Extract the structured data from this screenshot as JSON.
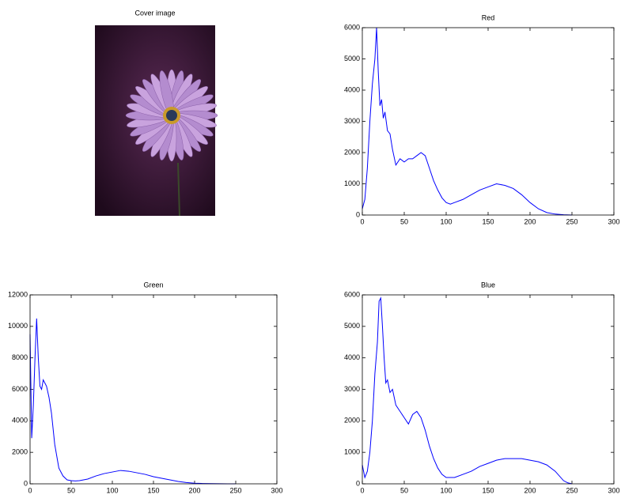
{
  "chart_data": [
    {
      "type": "image",
      "title": "Cover image"
    },
    {
      "type": "line",
      "title": "Red",
      "series": [
        {
          "color": "#0000ff",
          "x": [
            0,
            3,
            6,
            9,
            12,
            15,
            17,
            19,
            21,
            23,
            25,
            27,
            30,
            33,
            36,
            40,
            45,
            50,
            55,
            60,
            65,
            70,
            75,
            80,
            85,
            90,
            95,
            100,
            105,
            110,
            120,
            130,
            140,
            150,
            160,
            170,
            180,
            190,
            200,
            210,
            220,
            230,
            240,
            250
          ],
          "values": [
            200,
            500,
            1500,
            3000,
            4200,
            5000,
            6000,
            4600,
            3500,
            3700,
            3100,
            3300,
            2700,
            2600,
            2100,
            1600,
            1800,
            1700,
            1800,
            1800,
            1900,
            2000,
            1900,
            1500,
            1100,
            800,
            550,
            400,
            350,
            400,
            500,
            650,
            800,
            900,
            1000,
            950,
            850,
            650,
            400,
            200,
            80,
            30,
            10,
            0
          ]
        }
      ],
      "xlim": [
        0,
        300
      ],
      "xticks": [
        0,
        50,
        100,
        150,
        200,
        250,
        300
      ],
      "ylim": [
        0,
        6000
      ],
      "yticks": [
        0,
        1000,
        2000,
        3000,
        4000,
        5000,
        6000
      ]
    },
    {
      "type": "line",
      "title": "Green",
      "series": [
        {
          "color": "#0000ff",
          "x": [
            0,
            2,
            4,
            6,
            8,
            10,
            12,
            14,
            16,
            18,
            20,
            23,
            26,
            30,
            35,
            40,
            45,
            50,
            55,
            60,
            70,
            80,
            90,
            100,
            110,
            120,
            130,
            140,
            150,
            160,
            170,
            180,
            190,
            200,
            210,
            220,
            230,
            240,
            250
          ],
          "values": [
            9500,
            2900,
            5000,
            8000,
            10500,
            8000,
            6200,
            6000,
            6600,
            6400,
            6200,
            5500,
            4500,
            2500,
            1000,
            500,
            250,
            200,
            180,
            200,
            300,
            500,
            650,
            750,
            850,
            800,
            700,
            600,
            450,
            350,
            250,
            150,
            80,
            40,
            20,
            10,
            5,
            0,
            0
          ]
        }
      ],
      "xlim": [
        0,
        300
      ],
      "xticks": [
        0,
        50,
        100,
        150,
        200,
        250,
        300
      ],
      "ylim": [
        0,
        12000
      ],
      "yticks": [
        0,
        2000,
        4000,
        6000,
        8000,
        10000,
        12000
      ]
    },
    {
      "type": "line",
      "title": "Blue",
      "series": [
        {
          "color": "#0000ff",
          "x": [
            0,
            3,
            6,
            9,
            12,
            15,
            18,
            20,
            22,
            24,
            26,
            28,
            30,
            33,
            36,
            40,
            45,
            50,
            55,
            60,
            65,
            70,
            75,
            80,
            85,
            90,
            95,
            100,
            110,
            120,
            130,
            140,
            150,
            160,
            170,
            180,
            190,
            200,
            210,
            220,
            230,
            240,
            245,
            250
          ],
          "values": [
            600,
            200,
            400,
            1000,
            2000,
            3500,
            4500,
            5800,
            5900,
            5000,
            4000,
            3200,
            3300,
            2900,
            3000,
            2500,
            2300,
            2100,
            1900,
            2200,
            2300,
            2100,
            1700,
            1200,
            800,
            500,
            300,
            200,
            200,
            300,
            400,
            550,
            650,
            750,
            800,
            800,
            800,
            750,
            700,
            600,
            400,
            100,
            30,
            0
          ]
        }
      ],
      "xlim": [
        0,
        300
      ],
      "xticks": [
        0,
        50,
        100,
        150,
        200,
        250,
        300
      ],
      "ylim": [
        0,
        6000
      ],
      "yticks": [
        0,
        1000,
        2000,
        3000,
        4000,
        5000,
        6000
      ]
    }
  ]
}
